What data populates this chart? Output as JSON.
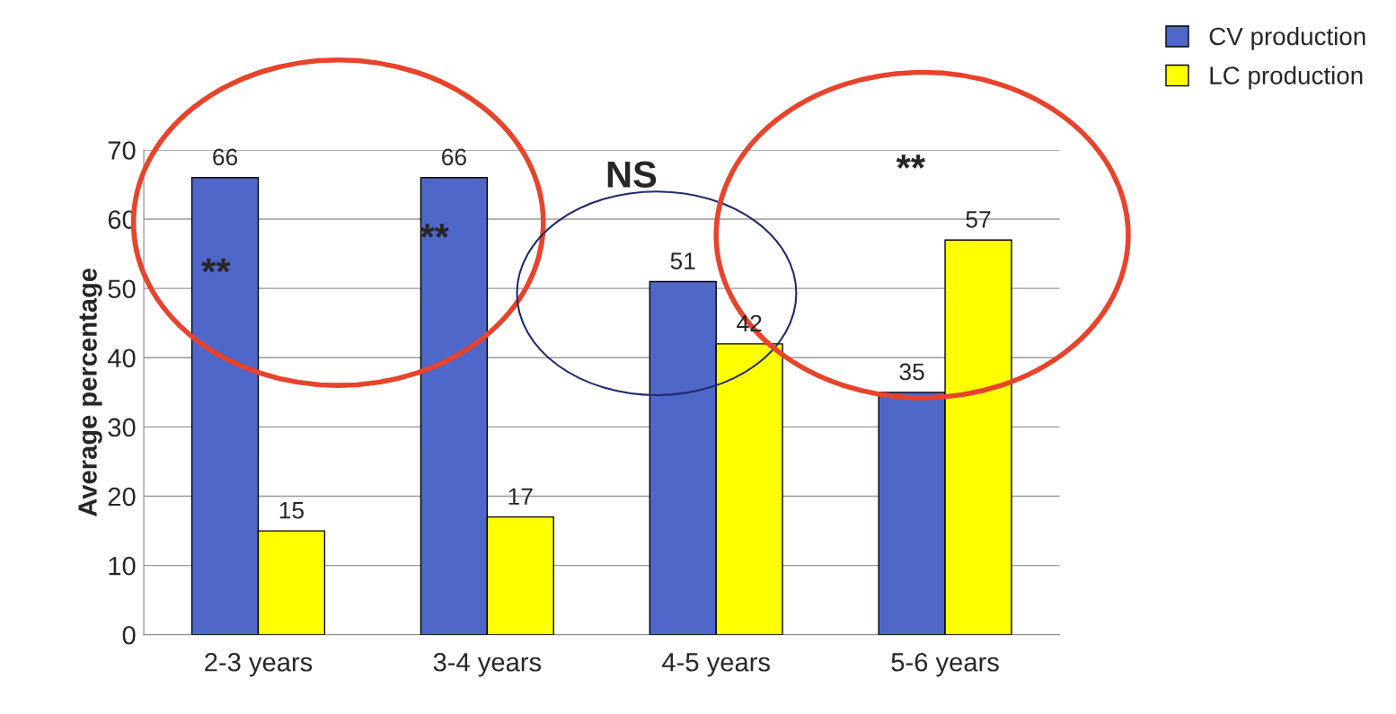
{
  "chart_data": {
    "type": "bar",
    "ylabel": "Average percentage",
    "categories": [
      "2-3 years",
      "3-4 years",
      "4-5 years",
      "5-6 years"
    ],
    "series": [
      {
        "name": "CV production",
        "color": "#4f67c8",
        "values": [
          66,
          66,
          51,
          35
        ]
      },
      {
        "name": "LC production",
        "color": "#ffff00",
        "values": [
          15,
          17,
          42,
          57
        ]
      }
    ],
    "ylim": [
      0,
      70
    ],
    "yticks": [
      0,
      10,
      20,
      30,
      40,
      50,
      60,
      70
    ],
    "grid": "y",
    "legend": "top right",
    "data_labels": true,
    "annotations": [
      "**",
      "**",
      "NS",
      "**"
    ]
  }
}
